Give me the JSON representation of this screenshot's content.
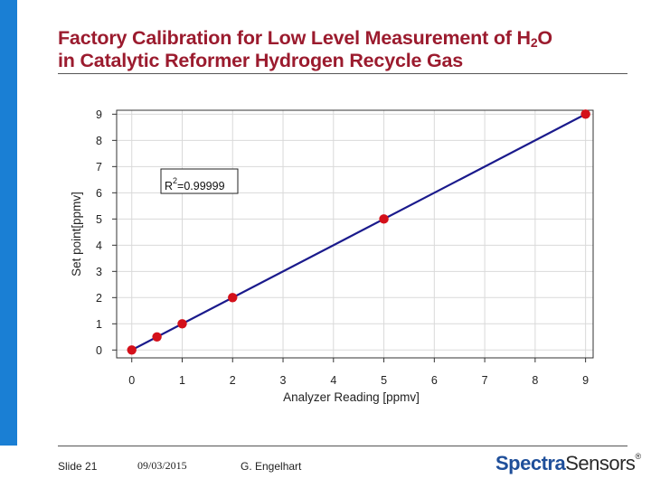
{
  "title": {
    "line1_prefix": "Factory Calibration for Low Level Measurement of H",
    "line1_sub": "2",
    "line1_suffix": "O",
    "line2": "in Catalytic Reformer Hydrogen Recycle Gas"
  },
  "footer": {
    "slide": "Slide 21",
    "date": "09/03/2015",
    "author": "G. Engelhart",
    "logo_part1": "Spectra",
    "logo_part2": "Sensors",
    "logo_mark": "®"
  },
  "colors": {
    "accent_bar": "#1a7fd4",
    "title": "#9b1b2e",
    "fit_line": "#1a1a8c",
    "points": "#d4101a"
  },
  "chart_data": {
    "type": "scatter",
    "xlabel": "Analyzer Reading [ppmv]",
    "ylabel": "Set point[ppmv]",
    "xlim": [
      -0.3,
      9.15
    ],
    "ylim": [
      -0.3,
      9.15
    ],
    "x_ticks": [
      0,
      1,
      2,
      3,
      4,
      5,
      6,
      7,
      8,
      9
    ],
    "y_ticks": [
      0,
      1,
      2,
      3,
      4,
      5,
      6,
      7,
      8,
      9
    ],
    "grid": true,
    "points": [
      {
        "x": 0,
        "y": 0
      },
      {
        "x": 0.5,
        "y": 0.5
      },
      {
        "x": 1,
        "y": 1
      },
      {
        "x": 2,
        "y": 2
      },
      {
        "x": 5,
        "y": 5
      },
      {
        "x": 9,
        "y": 9
      }
    ],
    "fit_line": {
      "x": [
        0,
        9
      ],
      "y": [
        0,
        9
      ]
    },
    "annotation": {
      "prefix": "R",
      "sup": "2",
      "value": "=0.99999"
    }
  }
}
